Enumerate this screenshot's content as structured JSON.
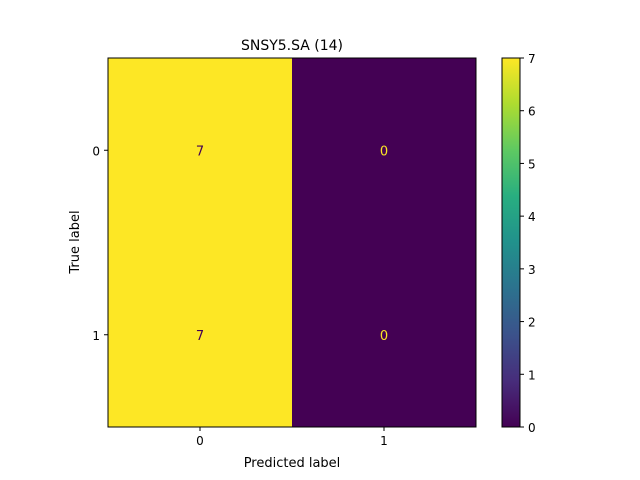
{
  "chart_data": {
    "type": "heatmap",
    "title": "SNSY5.SA (14)",
    "xlabel": "Predicted label",
    "ylabel": "True label",
    "x_categories": [
      "0",
      "1"
    ],
    "y_categories": [
      "0",
      "1"
    ],
    "matrix": [
      [
        7,
        0
      ],
      [
        7,
        0
      ]
    ],
    "cell_labels": [
      [
        "7",
        "0"
      ],
      [
        "7",
        "0"
      ]
    ],
    "colorbar": {
      "colormap": "viridis",
      "range": [
        0,
        7
      ],
      "ticks": [
        "0",
        "1",
        "2",
        "3",
        "4",
        "5",
        "6",
        "7"
      ]
    },
    "colors": {
      "high": "#fde725",
      "low": "#440154",
      "label_on_low": "#fde725",
      "label_on_high": "#440154"
    }
  }
}
